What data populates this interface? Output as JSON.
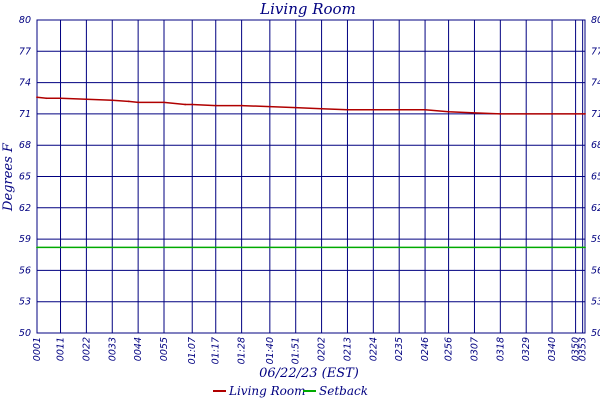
{
  "chart_data": {
    "type": "line",
    "title": "Living Room",
    "xlabel": "06/22/23 (EST)",
    "ylabel": "Degrees F",
    "ylim": [
      50,
      80
    ],
    "yticks": [
      50,
      53,
      56,
      59,
      62,
      65,
      68,
      71,
      74,
      77,
      80
    ],
    "ytick_labels": [
      "50",
      "53",
      "56",
      "59",
      "62",
      "65",
      "68",
      "71",
      "74",
      "77",
      "80"
    ],
    "xticks": [
      "0001",
      "0011",
      "0022",
      "0033",
      "0044",
      "0055",
      "01:07",
      "01:17",
      "01:28",
      "01:40",
      "01:51",
      "0202",
      "0213",
      "0224",
      "0235",
      "0246",
      "0256",
      "0307",
      "0318",
      "0329",
      "0340",
      "0350",
      "0353"
    ],
    "x_minutes": [
      1,
      11,
      22,
      33,
      44,
      55,
      67,
      77,
      88,
      100,
      111,
      122,
      133,
      144,
      155,
      166,
      176,
      187,
      198,
      209,
      220,
      230,
      233
    ],
    "xlim": [
      1,
      234
    ],
    "grid": true,
    "legend_position": "bottom",
    "series": [
      {
        "name": "Living Room",
        "color": "#b00000",
        "x": [
          1,
          5,
          11,
          22,
          33,
          40,
          44,
          55,
          64,
          67,
          77,
          88,
          100,
          111,
          122,
          133,
          144,
          155,
          166,
          176,
          187,
          198,
          209,
          220,
          230,
          234
        ],
        "values": [
          72.6,
          72.5,
          72.5,
          72.4,
          72.3,
          72.2,
          72.1,
          72.1,
          71.9,
          71.9,
          71.8,
          71.8,
          71.7,
          71.6,
          71.5,
          71.4,
          71.4,
          71.4,
          71.4,
          71.2,
          71.1,
          71.0,
          71.0,
          71.0,
          71.0,
          71.0
        ]
      },
      {
        "name": "Setback",
        "color": "#00aa00",
        "x": [
          1,
          234
        ],
        "values": [
          58.2,
          58.2
        ]
      }
    ]
  }
}
